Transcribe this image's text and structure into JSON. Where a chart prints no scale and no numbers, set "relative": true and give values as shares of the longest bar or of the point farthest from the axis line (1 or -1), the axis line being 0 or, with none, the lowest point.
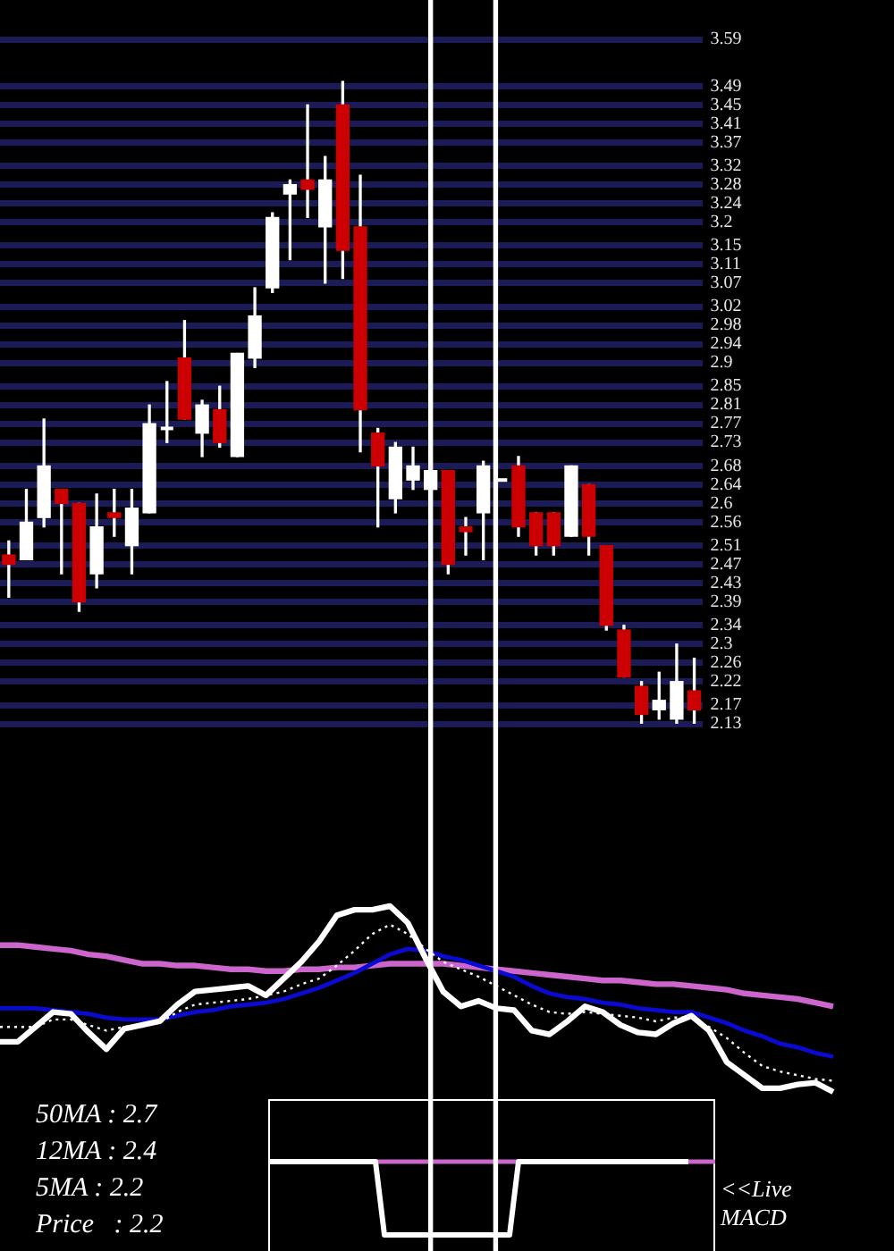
{
  "chart_data": [
    {
      "type": "candlestick",
      "categories": [
        null,
        null,
        null,
        null,
        null,
        null,
        null,
        null,
        null,
        null,
        null,
        null,
        null,
        null,
        null,
        null,
        null,
        null,
        null,
        null,
        null,
        null,
        null,
        null,
        null,
        null,
        null,
        null,
        null,
        null,
        null,
        null,
        null,
        null,
        null,
        null,
        null,
        null,
        null,
        null
      ],
      "ohlc": [
        [
          2.49,
          2.52,
          2.4,
          2.47
        ],
        [
          2.48,
          2.63,
          2.48,
          2.56
        ],
        [
          2.57,
          2.78,
          2.55,
          2.68
        ],
        [
          2.63,
          2.63,
          2.45,
          2.6
        ],
        [
          2.6,
          2.6,
          2.37,
          2.39
        ],
        [
          2.45,
          2.62,
          2.42,
          2.55
        ],
        [
          2.58,
          2.63,
          2.53,
          2.57
        ],
        [
          2.51,
          2.63,
          2.45,
          2.59
        ],
        [
          2.58,
          2.81,
          2.58,
          2.77
        ],
        [
          2.76,
          2.86,
          2.73,
          2.76
        ],
        [
          2.91,
          2.99,
          2.78,
          2.78
        ],
        [
          2.75,
          2.82,
          2.7,
          2.81
        ],
        [
          2.8,
          2.85,
          2.72,
          2.73
        ],
        [
          2.7,
          2.92,
          2.7,
          2.92
        ],
        [
          2.91,
          3.06,
          2.89,
          3.0
        ],
        [
          3.06,
          3.22,
          3.05,
          3.21
        ],
        [
          3.26,
          3.29,
          3.12,
          3.28
        ],
        [
          3.29,
          3.45,
          3.21,
          3.27
        ],
        [
          3.19,
          3.34,
          3.07,
          3.29
        ],
        [
          3.45,
          3.5,
          3.08,
          3.14
        ],
        [
          3.19,
          3.3,
          2.71,
          2.8
        ],
        [
          2.75,
          2.76,
          2.55,
          2.68
        ],
        [
          2.61,
          2.73,
          2.58,
          2.72
        ],
        [
          2.65,
          2.72,
          2.63,
          2.68
        ],
        [
          2.63,
          2.76,
          2.63,
          2.67
        ],
        [
          2.67,
          2.67,
          2.45,
          2.47
        ],
        [
          2.55,
          2.57,
          2.49,
          2.54
        ],
        [
          2.58,
          2.69,
          2.48,
          2.68
        ],
        [
          2.65,
          2.65,
          2.65,
          2.65
        ],
        [
          2.68,
          2.7,
          2.53,
          2.55
        ],
        [
          2.58,
          2.58,
          2.49,
          2.51
        ],
        [
          2.58,
          2.58,
          2.49,
          2.51
        ],
        [
          2.53,
          2.68,
          2.53,
          2.68
        ],
        [
          2.64,
          2.64,
          2.49,
          2.53
        ],
        [
          2.51,
          2.51,
          2.33,
          2.34
        ],
        [
          2.33,
          2.34,
          2.23,
          2.23
        ],
        [
          2.21,
          2.22,
          2.13,
          2.15
        ],
        [
          2.16,
          2.24,
          2.14,
          2.18
        ],
        [
          2.14,
          2.3,
          2.13,
          2.22
        ],
        [
          2.2,
          2.27,
          2.13,
          2.16
        ]
      ],
      "colors": [
        "#cc0000",
        "#ffffff",
        "#ffffff",
        "#cc0000",
        "#cc0000",
        "#ffffff",
        "#cc0000",
        "#ffffff",
        "#ffffff",
        "#ffffff",
        "#cc0000",
        "#ffffff",
        "#cc0000",
        "#ffffff",
        "#ffffff",
        "#ffffff",
        "#ffffff",
        "#cc0000",
        "#ffffff",
        "#cc0000",
        "#cc0000",
        "#cc0000",
        "#ffffff",
        "#ffffff",
        "#ffffff",
        "#cc0000",
        "#cc0000",
        "#ffffff",
        "#ffffff",
        "#cc0000",
        "#cc0000",
        "#cc0000",
        "#ffffff",
        "#cc0000",
        "#cc0000",
        "#cc0000",
        "#cc0000",
        "#ffffff",
        "#ffffff",
        "#cc0000"
      ],
      "ylim": [
        2.13,
        3.59
      ],
      "yticks": [
        2.13,
        2.17,
        2.22,
        2.26,
        2.3,
        2.34,
        2.39,
        2.43,
        2.47,
        2.51,
        2.56,
        2.6,
        2.64,
        2.68,
        2.73,
        2.77,
        2.81,
        2.85,
        2.9,
        2.94,
        2.98,
        3.02,
        3.07,
        3.11,
        3.15,
        3.2,
        3.24,
        3.28,
        3.32,
        3.37,
        3.41,
        3.45,
        3.49,
        3.59
      ],
      "grid": "y",
      "tick_labels": "y"
    },
    {
      "type": "line",
      "relative": true,
      "tick_labels": false,
      "categories": [
        null,
        null,
        null,
        null,
        null,
        null,
        null,
        null,
        null,
        null,
        null,
        null,
        null,
        null,
        null,
        null,
        null,
        null,
        null,
        null,
        null,
        null,
        null,
        null,
        null,
        null,
        null,
        null,
        null,
        null,
        null,
        null,
        null,
        null,
        null,
        null,
        null,
        null,
        null,
        null,
        null,
        null,
        null,
        null,
        null,
        null,
        null,
        null
      ],
      "series": [
        {
          "color": "#ffffff",
          "values": [
            0.27,
            0.27,
            0.35,
            0.43,
            0.42,
            0.32,
            0.23,
            0.34,
            0.36,
            0.38,
            0.47,
            0.54,
            0.55,
            0.56,
            0.57,
            0.52,
            0.61,
            0.7,
            0.81,
            0.95,
            0.98,
            0.98,
            1,
            0.91,
            0.72,
            0.54,
            0.46,
            0.49,
            0.45,
            0.44,
            0.33,
            0.31,
            0.38,
            0.46,
            0.43,
            0.36,
            0.32,
            0.31,
            0.37,
            0.41,
            0.33,
            0.16,
            0.09,
            0.02,
            0.02,
            0.04,
            0.05,
            0
          ]
        },
        {
          "color": "#ffffff",
          "line_style": "dotted",
          "values": [
            0.35,
            0.35,
            0.35,
            0.39,
            0.39,
            0.36,
            0.33,
            0.35,
            0.36,
            0.37,
            0.43,
            0.47,
            0.48,
            0.49,
            0.5,
            0.52,
            0.54,
            0.58,
            0.61,
            0.68,
            0.76,
            0.85,
            0.9,
            0.85,
            0.77,
            0.7,
            0.66,
            0.62,
            0.57,
            0.52,
            0.47,
            0.43,
            0.42,
            0.43,
            0.42,
            0.41,
            0.4,
            0.38,
            0.4,
            0.4,
            0.35,
            0.29,
            0.21,
            0.14,
            0.11,
            0.09,
            0.07,
            0.06
          ]
        },
        {
          "color": "#0a0ad0",
          "values": [
            0.45,
            0.45,
            0.45,
            0.44,
            0.43,
            0.42,
            0.4,
            0.39,
            0.39,
            0.39,
            0.41,
            0.43,
            0.44,
            0.46,
            0.47,
            0.48,
            0.5,
            0.53,
            0.56,
            0.6,
            0.64,
            0.69,
            0.74,
            0.77,
            0.76,
            0.73,
            0.71,
            0.68,
            0.65,
            0.62,
            0.57,
            0.53,
            0.51,
            0.5,
            0.48,
            0.47,
            0.45,
            0.44,
            0.43,
            0.43,
            0.4,
            0.37,
            0.33,
            0.3,
            0.26,
            0.24,
            0.21,
            0.19
          ]
        },
        {
          "color": "#cc66cc",
          "values": [
            0.79,
            0.79,
            0.78,
            0.77,
            0.76,
            0.74,
            0.73,
            0.71,
            0.69,
            0.69,
            0.68,
            0.68,
            0.67,
            0.66,
            0.66,
            0.65,
            0.65,
            0.66,
            0.66,
            0.67,
            0.67,
            0.68,
            0.69,
            0.69,
            0.69,
            0.69,
            0.68,
            0.67,
            0.66,
            0.65,
            0.64,
            0.63,
            0.62,
            0.61,
            0.6,
            0.6,
            0.59,
            0.58,
            0.58,
            0.57,
            0.56,
            0.55,
            0.53,
            0.52,
            0.51,
            0.5,
            0.48,
            0.46
          ]
        }
      ],
      "annotations": [
        "50MA : 2.7",
        "12MA : 2.4",
        "5MA : 2.2",
        "Price   : 2.2"
      ]
    },
    {
      "type": "line",
      "relative": true,
      "tick_labels": false,
      "categories": [
        null,
        null,
        null,
        null,
        null,
        null,
        null,
        null,
        null,
        null,
        null,
        null,
        null,
        null,
        null,
        null,
        null,
        null,
        null,
        null,
        null,
        null,
        null,
        null,
        null,
        null,
        null,
        null,
        null,
        null,
        null,
        null,
        null,
        null,
        null,
        null,
        null,
        null,
        null,
        null,
        null,
        null,
        null,
        null,
        null,
        null,
        null,
        null,
        null,
        null,
        null
      ],
      "series": [
        {
          "color": "#ffffff",
          "values": [
            1,
            1,
            1,
            1,
            1,
            1,
            1,
            1,
            1,
            1,
            1,
            1,
            1,
            0,
            0,
            0,
            0,
            0,
            0,
            0,
            0,
            0,
            0,
            0,
            0,
            0,
            0,
            0,
            1,
            1,
            1,
            1,
            1,
            1,
            1,
            1,
            1,
            1,
            1,
            1,
            1,
            1,
            1,
            1,
            1,
            1,
            1,
            1,
            null,
            null,
            null
          ]
        },
        {
          "color": "#cc66cc",
          "values": [
            null,
            null,
            null,
            null,
            null,
            null,
            null,
            null,
            null,
            null,
            null,
            null,
            1,
            1,
            1,
            1,
            1,
            1,
            1,
            1,
            1,
            1,
            1,
            1,
            1,
            1,
            1,
            1,
            1,
            null,
            null,
            null,
            null,
            null,
            null,
            null,
            null,
            null,
            null,
            null,
            null,
            null,
            null,
            null,
            null,
            null,
            null,
            1,
            1,
            1,
            1
          ]
        }
      ],
      "annotations": [
        "<<Live MACD"
      ]
    }
  ]
}
